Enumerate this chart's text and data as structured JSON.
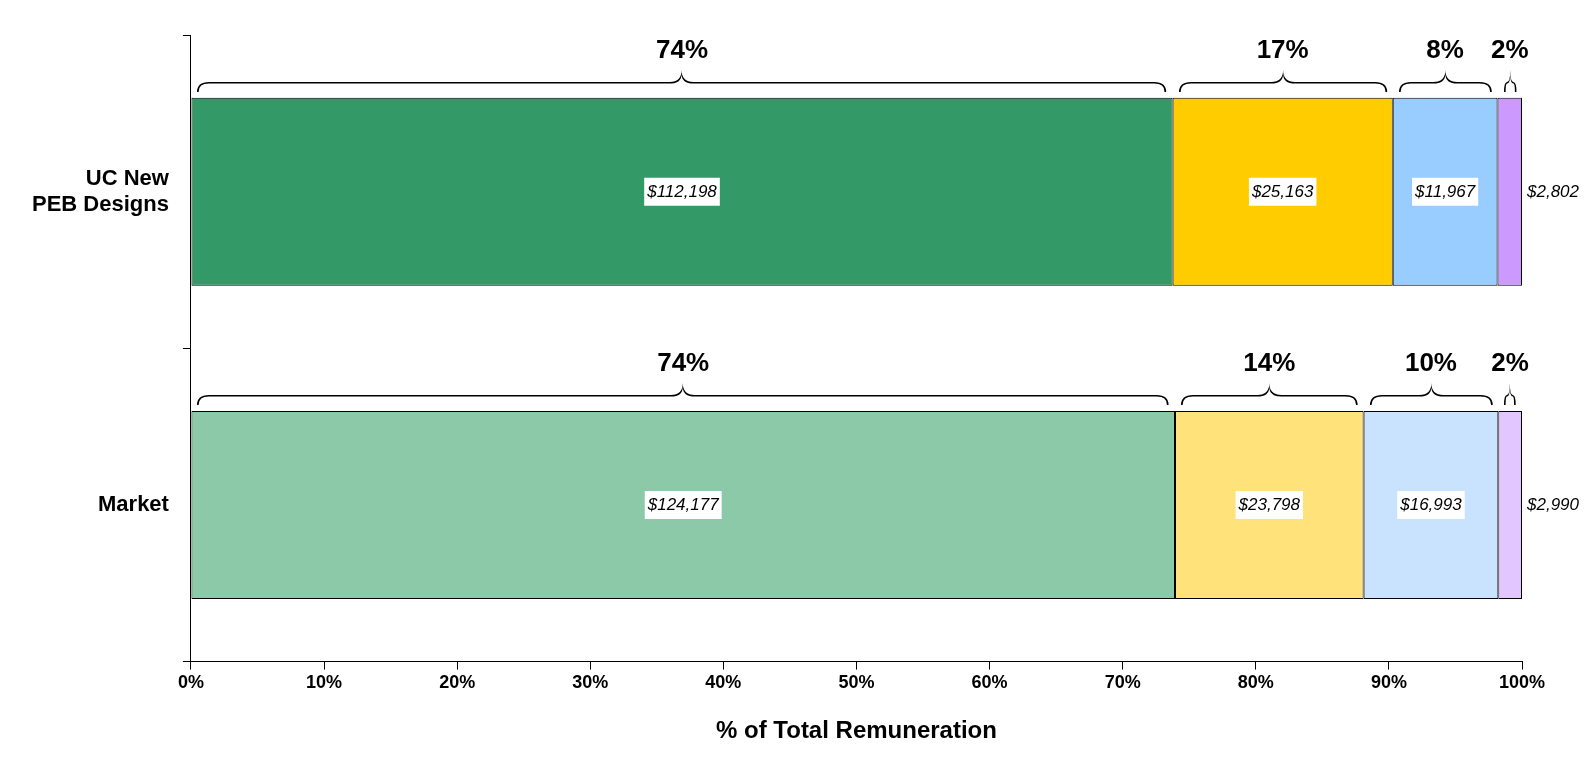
{
  "chart_data": {
    "type": "bar",
    "orientation": "horizontal",
    "stacked": true,
    "xlabel": "% of Total Remuneration",
    "categories": [
      "UC New PEB Designs",
      "Market"
    ],
    "series": [
      {
        "colors": [
          "#339966",
          "#8cc9a8"
        ],
        "values": [
          73.75,
          73.93
        ]
      },
      {
        "colors": [
          "#ffcc00",
          "#ffe27a"
        ],
        "values": [
          16.54,
          14.17
        ]
      },
      {
        "colors": [
          "#99ccff",
          "#c9e3ff"
        ],
        "values": [
          7.87,
          10.12
        ]
      },
      {
        "colors": [
          "#cc99ff",
          "#e2c6ff"
        ],
        "values": [
          1.84,
          1.78
        ]
      }
    ],
    "xlim": [
      0,
      100
    ],
    "xticks": [
      {
        "value": 0,
        "label": "0%"
      },
      {
        "value": 10,
        "label": "10%"
      },
      {
        "value": 20,
        "label": "20%"
      },
      {
        "value": 30,
        "label": "30%"
      },
      {
        "value": 40,
        "label": "40%"
      },
      {
        "value": 50,
        "label": "50%"
      },
      {
        "value": 60,
        "label": "60%"
      },
      {
        "value": 70,
        "label": "70%"
      },
      {
        "value": 80,
        "label": "80%"
      },
      {
        "value": 90,
        "label": "90%"
      },
      {
        "value": 100,
        "label": "100%"
      }
    ],
    "annotations": [
      "74%",
      "17%",
      "8%",
      "2%",
      "74%",
      "14%",
      "10%",
      "2%",
      "$112,198",
      "$25,163",
      "$11,967",
      "$2,802",
      "$124,177",
      "$23,798",
      "$16,993",
      "$2,990"
    ],
    "grid": false,
    "legend": false
  }
}
